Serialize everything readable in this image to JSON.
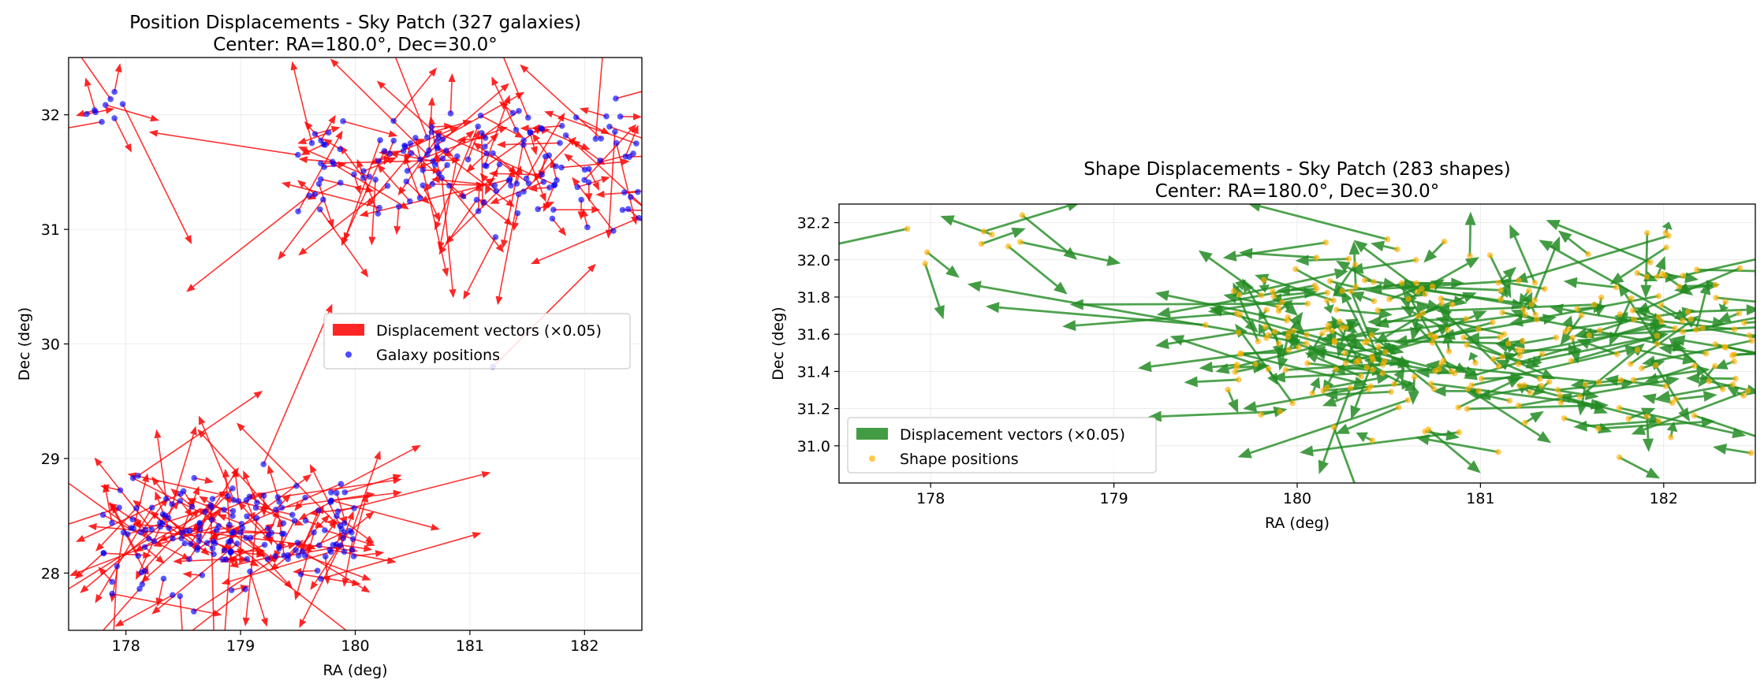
{
  "chart_data": [
    {
      "type": "quiver",
      "title": "Position Displacements - Sky Patch (327 galaxies)",
      "subtitle": "Center: RA=180.0°, Dec=30.0°",
      "xlabel": "RA (deg)",
      "ylabel": "Dec (deg)",
      "xlim": [
        177.5,
        182.5
      ],
      "ylim": [
        27.5,
        32.5
      ],
      "xticks": [
        178,
        179,
        180,
        181,
        182
      ],
      "yticks": [
        28,
        29,
        30,
        31,
        32
      ],
      "grid": true,
      "legend_position": "center-right",
      "legend": [
        "Displacement vectors (×0.05)",
        "Galaxy positions"
      ],
      "arrow_color": "#ff0000",
      "point_color": "#0000ff",
      "series": [
        {
          "name": "Galaxy positions",
          "kind": "points",
          "count": 327,
          "clusters": [
            {
              "ra_range": [
                177.8,
                180.0
              ],
              "dec_range": [
                27.6,
                29.1
              ],
              "count": 170
            },
            {
              "ra_range": [
                179.5,
                182.5
              ],
              "dec_range": [
                30.8,
                32.3
              ],
              "count": 150
            },
            {
              "ra_range": [
                177.6,
                178.0
              ],
              "dec_range": [
                31.9,
                32.2
              ],
              "count": 7
            }
          ]
        },
        {
          "name": "Displacement vectors (×0.05)",
          "kind": "arrows",
          "count": 327
        }
      ],
      "highlights": [
        {
          "ra": 177.9,
          "dec": 32.2,
          "dra": 0.05,
          "ddec": 0.25
        },
        {
          "ra": 177.9,
          "dec": 31.97,
          "dra": 0.15,
          "ddec": -0.3
        },
        {
          "ra": 179.5,
          "dec": 31.65,
          "dra": -1.3,
          "ddec": 0.2
        },
        {
          "ra": 179.2,
          "dec": 28.95,
          "dra": 0.6,
          "ddec": 1.4
        },
        {
          "ra": 181.2,
          "dec": 29.8,
          "dra": 0.9,
          "ddec": 0.9
        },
        {
          "ra": 179.7,
          "dec": 27.95,
          "dra": 1.4,
          "ddec": 0.4
        },
        {
          "ra": 178.2,
          "dec": 28.3,
          "dra": -0.8,
          "ddec": -0.5
        }
      ]
    },
    {
      "type": "quiver",
      "title": "Shape Displacements - Sky Patch (283 shapes)",
      "subtitle": "Center: RA=180.0°, Dec=30.0°",
      "xlabel": "RA (deg)",
      "ylabel": "Dec (deg)",
      "xlim": [
        177.5,
        182.5
      ],
      "ylim": [
        30.8,
        32.3
      ],
      "xticks": [
        178,
        179,
        180,
        181,
        182
      ],
      "yticks": [
        31.0,
        31.2,
        31.4,
        31.6,
        31.8,
        32.0,
        32.2
      ],
      "grid": true,
      "legend_position": "lower-left",
      "legend": [
        "Displacement vectors (×0.05)",
        "Shape positions"
      ],
      "arrow_color": "#228b22",
      "point_color": "#ffb000",
      "series": [
        {
          "name": "Shape positions",
          "kind": "points",
          "count": 283,
          "clusters": [
            {
              "ra_range": [
                179.6,
                182.5
              ],
              "dec_range": [
                30.85,
                32.3
              ],
              "count": 276
            },
            {
              "ra_range": [
                177.6,
                178.6
              ],
              "dec_range": [
                31.95,
                32.25
              ],
              "count": 7
            }
          ]
        },
        {
          "name": "Displacement vectors (×0.05)",
          "kind": "arrows",
          "count": 283
        }
      ],
      "highlights": [
        {
          "ra": 178.5,
          "dec": 32.24,
          "dra": 0.3,
          "ddec": -0.24
        },
        {
          "ra": 177.97,
          "dec": 31.98,
          "dra": 0.1,
          "ddec": -0.3
        },
        {
          "ra": 180.05,
          "dec": 31.55,
          "dra": -1.85,
          "ddec": 0.32
        },
        {
          "ra": 179.5,
          "dec": 31.65,
          "dra": -1.2,
          "ddec": 0.1
        },
        {
          "ra": 179.9,
          "dec": 31.55,
          "dra": -0.2,
          "ddec": 0.35
        },
        {
          "ra": 180.2,
          "dec": 31.1,
          "dra": 0.15,
          "ddec": -0.4
        }
      ]
    }
  ]
}
